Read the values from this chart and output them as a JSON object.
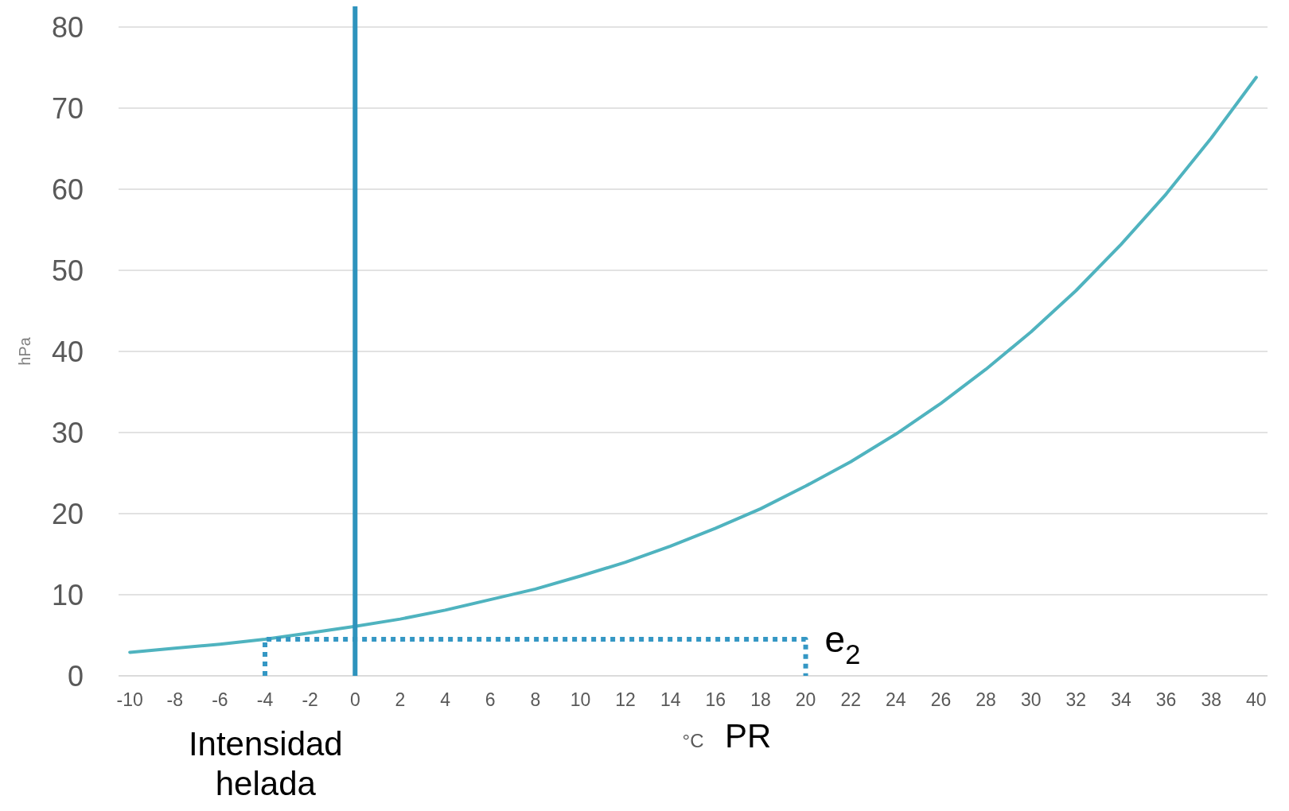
{
  "chart_data": {
    "type": "line",
    "xlabel": "°C",
    "ylabel": "hPa",
    "xlim": [
      -10.5,
      40.5
    ],
    "xticks": [
      -10,
      -8,
      -6,
      -4,
      -2,
      0,
      2,
      4,
      6,
      8,
      10,
      12,
      14,
      16,
      18,
      20,
      22,
      24,
      26,
      28,
      30,
      32,
      34,
      36,
      38,
      40
    ],
    "ylim": [
      0,
      80
    ],
    "yticks": [
      0,
      10,
      20,
      30,
      40,
      50,
      60,
      70,
      80
    ],
    "grid": "y",
    "marker": "none",
    "series": [
      {
        "color": "#4fb3bf",
        "line_style": "solid",
        "x": [
          -10,
          -8,
          -6,
          -4,
          -2,
          0,
          2,
          4,
          6,
          8,
          10,
          12,
          14,
          16,
          18,
          20,
          22,
          24,
          26,
          28,
          30,
          32,
          34,
          36,
          38,
          40
        ],
        "values": [
          2.9,
          3.4,
          3.9,
          4.5,
          5.3,
          6.1,
          7.0,
          8.1,
          9.4,
          10.7,
          12.3,
          14.0,
          16.0,
          18.2,
          20.6,
          23.4,
          26.4,
          29.8,
          33.6,
          37.8,
          42.4,
          47.5,
          53.2,
          59.4,
          66.3,
          73.8
        ]
      },
      {
        "color": "#3497c4",
        "line_style": "dotted",
        "x": [
          -4,
          -4,
          20,
          20
        ],
        "values": [
          0,
          4.5,
          4.5,
          0
        ]
      }
    ],
    "ref_lines": [
      {
        "axis": "x",
        "value": 0,
        "color": "#2e93bd",
        "line_style": "solid"
      }
    ],
    "annotations": [
      {
        "text": "e$_{2}$",
        "x": 20,
        "y": 4.5
      },
      "Intensidad helada",
      "PR"
    ]
  }
}
